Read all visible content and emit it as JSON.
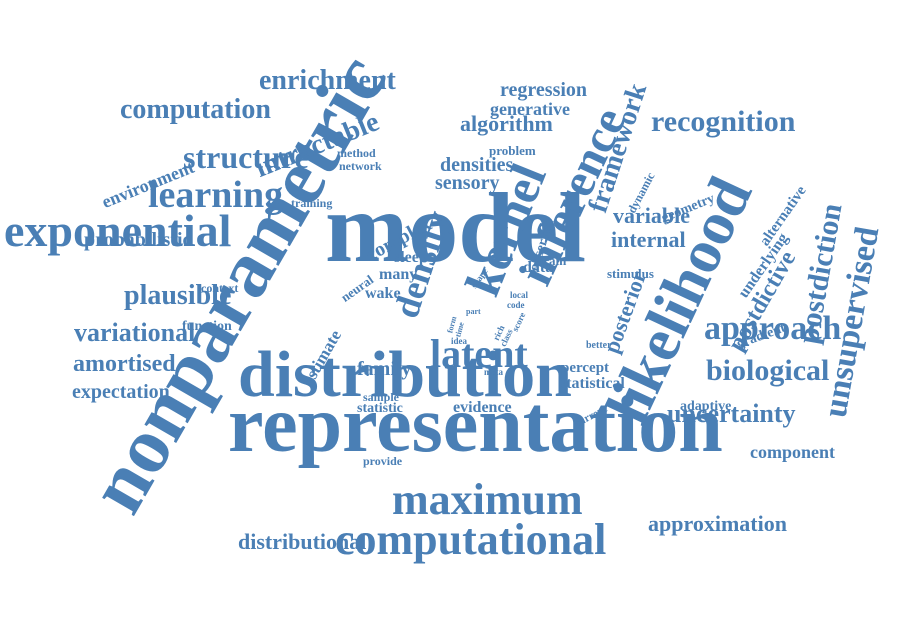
{
  "color": "#4a7fb5",
  "words": [
    "nonparametric",
    "model",
    "representation",
    "distribution",
    "likelihood",
    "computational",
    "kernel",
    "inference",
    "exponential",
    "maximum",
    "latent",
    "density",
    "enrichment",
    "computation",
    "learning",
    "structure",
    "unsupervised",
    "approach",
    "biological",
    "postdiction",
    "recognition",
    "framework",
    "intractable",
    "variational",
    "plausible",
    "amortised",
    "uncertainty",
    "approximation",
    "expectation",
    "distributional",
    "algorithm",
    "regression",
    "generative",
    "environment",
    "densities",
    "sensory",
    "complex",
    "variable",
    "internal",
    "postdictive",
    "posterior",
    "probabilistic",
    "family",
    "evidence",
    "statistic",
    "statistical",
    "percept",
    "component",
    "adaptive",
    "geometry",
    "alternative",
    "underlying",
    "gradient",
    "sleep",
    "wake",
    "many",
    "data",
    "estimate",
    "function",
    "context",
    "training",
    "network",
    "method",
    "problem",
    "neural",
    "brain",
    "dynamic",
    "observed",
    "stimulus",
    "sample",
    "provide",
    "current",
    "better",
    "meta",
    "shape",
    "part",
    "local",
    "code",
    "score",
    "rich",
    "class",
    "form",
    "time",
    "idea"
  ]
}
